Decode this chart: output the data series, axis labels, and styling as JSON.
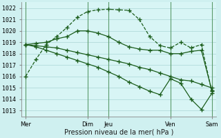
{
  "xlabel": "Pression niveau de la mer( hPa )",
  "bg_color": "#cff0f0",
  "plot_bg_color": "#d8f5f5",
  "grid_color": "#aad4d4",
  "line_color": "#1a5c1a",
  "vline_color": "#5a9a6a",
  "ylim": [
    1012.5,
    1022.5
  ],
  "yticks": [
    1013,
    1014,
    1015,
    1016,
    1017,
    1018,
    1019,
    1020,
    1021,
    1022
  ],
  "day_positions": [
    0,
    3,
    4,
    7,
    9
  ],
  "day_labels": [
    "Mer",
    "Dim",
    "Jeu",
    "Ven",
    "Sam"
  ],
  "series": [
    {
      "x": [
        0,
        0.5,
        1.0,
        1.5,
        2.0,
        2.5,
        3.0,
        3.5,
        4.0,
        4.5,
        5.0,
        5.5,
        6.0,
        6.5,
        7.0,
        7.5,
        8.0,
        8.5,
        9.0
      ],
      "y": [
        1016.0,
        1017.5,
        1018.8,
        1019.5,
        1020.3,
        1021.2,
        1021.7,
        1021.85,
        1021.9,
        1021.85,
        1021.8,
        1021.0,
        1019.5,
        1018.7,
        1018.5,
        1019.0,
        1018.5,
        1018.8,
        1014.7
      ],
      "marker": "+",
      "markersize": 4,
      "linewidth": 0.9,
      "linestyle": "--"
    },
    {
      "x": [
        0,
        0.5,
        1.0,
        1.5,
        2.0,
        2.5,
        3.0,
        3.5,
        4.0,
        4.5,
        5.0,
        5.5,
        6.0,
        6.5,
        7.0,
        7.5,
        8.0,
        8.5,
        9.0
      ],
      "y": [
        1018.8,
        1018.9,
        1019.0,
        1019.3,
        1019.5,
        1020.0,
        1020.0,
        1019.8,
        1019.5,
        1019.0,
        1018.6,
        1018.4,
        1018.3,
        1018.3,
        1018.0,
        1018.0,
        1018.2,
        1018.3,
        1014.8
      ],
      "marker": "+",
      "markersize": 4,
      "linewidth": 0.9,
      "linestyle": "-"
    },
    {
      "x": [
        0,
        0.5,
        1.0,
        1.5,
        2.0,
        2.5,
        3.0,
        3.5,
        4.0,
        4.5,
        5.0,
        5.5,
        6.0,
        6.5,
        7.0,
        7.5,
        8.0,
        8.5,
        9.0
      ],
      "y": [
        1018.8,
        1018.7,
        1018.6,
        1018.5,
        1018.3,
        1018.1,
        1017.9,
        1017.7,
        1017.5,
        1017.3,
        1017.1,
        1016.8,
        1016.6,
        1016.3,
        1016.0,
        1015.7,
        1015.6,
        1015.3,
        1015.0
      ],
      "marker": "+",
      "markersize": 4,
      "linewidth": 0.9,
      "linestyle": "-"
    },
    {
      "x": [
        0,
        0.5,
        1.0,
        1.5,
        2.0,
        2.5,
        3.0,
        3.5,
        4.0,
        4.5,
        5.0,
        5.5,
        6.0,
        6.5,
        7.0,
        7.5,
        8.0,
        8.5,
        9.0
      ],
      "y": [
        1018.8,
        1018.6,
        1018.3,
        1018.0,
        1017.7,
        1017.4,
        1017.1,
        1016.8,
        1016.4,
        1016.0,
        1015.5,
        1015.1,
        1014.7,
        1014.4,
        1015.8,
        1015.4,
        1014.0,
        1013.1,
        1014.5
      ],
      "marker": "+",
      "markersize": 4,
      "linewidth": 0.9,
      "linestyle": "-"
    }
  ]
}
